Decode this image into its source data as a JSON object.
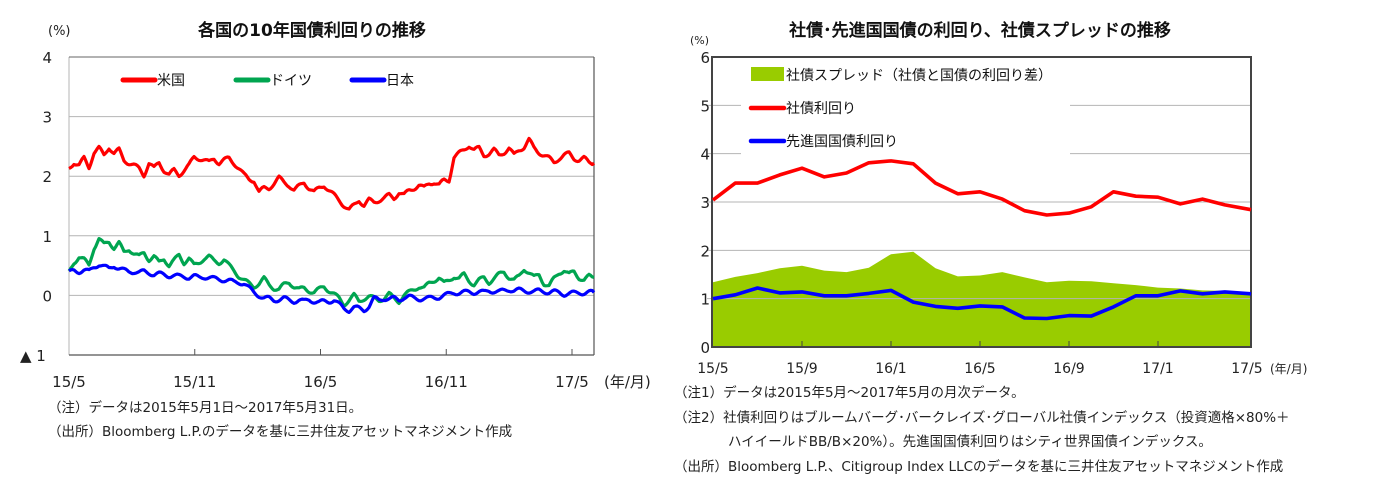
{
  "chart_data": [
    {
      "type": "line",
      "title": "各国の10年国債利回りの推移",
      "ylabel": "(%)",
      "xlabel": "(年/月)",
      "ylim": [
        -1,
        4
      ],
      "yticks": [
        {
          "value": 4,
          "label": "4"
        },
        {
          "value": 3,
          "label": "3"
        },
        {
          "value": 2,
          "label": "2"
        },
        {
          "value": 1,
          "label": "1"
        },
        {
          "value": 0,
          "label": "0"
        },
        {
          "value": -1,
          "label": "▲ 1"
        }
      ],
      "x_range": [
        "2015-05-01",
        "2017-05-31"
      ],
      "xticks": [
        {
          "month_index": 0,
          "label": "15/5"
        },
        {
          "month_index": 6,
          "label": "15/11"
        },
        {
          "month_index": 12,
          "label": "16/5"
        },
        {
          "month_index": 18,
          "label": "16/11"
        },
        {
          "month_index": 24,
          "label": "17/5"
        }
      ],
      "x_total_months": 25,
      "grid": true,
      "legend_position": "top-left",
      "sampling": "approximately weekly, evenly spaced from 2015-05-01 to 2017-05-31",
      "series": [
        {
          "name": "米国",
          "color": "#ff0000",
          "values": [
            2.13,
            2.23,
            2.18,
            2.3,
            2.15,
            2.4,
            2.47,
            2.35,
            2.49,
            2.38,
            2.44,
            2.27,
            2.22,
            2.18,
            2.13,
            2.02,
            2.22,
            2.13,
            2.23,
            2.1,
            2.02,
            2.1,
            2.02,
            2.1,
            2.18,
            2.32,
            2.3,
            2.27,
            2.23,
            2.3,
            2.22,
            2.27,
            2.3,
            2.22,
            2.13,
            2.02,
            1.95,
            1.93,
            1.73,
            1.8,
            1.8,
            1.88,
            1.97,
            1.9,
            1.85,
            1.76,
            1.83,
            1.9,
            1.8,
            1.73,
            1.8,
            1.85,
            1.76,
            1.68,
            1.6,
            1.51,
            1.43,
            1.51,
            1.6,
            1.51,
            1.6,
            1.56,
            1.6,
            1.63,
            1.68,
            1.63,
            1.73,
            1.68,
            1.76,
            1.8,
            1.85,
            1.8,
            1.88,
            1.9,
            1.85,
            1.93,
            1.93,
            2.32,
            2.38,
            2.44,
            2.52,
            2.44,
            2.47,
            2.35,
            2.38,
            2.44,
            2.35,
            2.4,
            2.47,
            2.35,
            2.44,
            2.49,
            2.61,
            2.47,
            2.4,
            2.35,
            2.3,
            2.23,
            2.3,
            2.35,
            2.38,
            2.3,
            2.27,
            2.3,
            2.23,
            2.22
          ]
        },
        {
          "name": "ドイツ",
          "color": "#00a550",
          "values": [
            0.38,
            0.55,
            0.65,
            0.6,
            0.5,
            0.8,
            0.95,
            0.85,
            0.9,
            0.8,
            0.88,
            0.72,
            0.78,
            0.7,
            0.65,
            0.72,
            0.6,
            0.65,
            0.55,
            0.62,
            0.5,
            0.58,
            0.68,
            0.55,
            0.62,
            0.5,
            0.55,
            0.62,
            0.65,
            0.58,
            0.55,
            0.6,
            0.5,
            0.42,
            0.32,
            0.25,
            0.2,
            0.15,
            0.2,
            0.28,
            0.18,
            0.12,
            0.1,
            0.18,
            0.22,
            0.15,
            0.1,
            0.12,
            0.08,
            0.05,
            0.1,
            0.15,
            0.08,
            0.02,
            -0.05,
            -0.15,
            -0.08,
            0.0,
            -0.1,
            -0.05,
            -0.02,
            -0.05,
            -0.08,
            -0.05,
            0.02,
            -0.05,
            -0.1,
            0.0,
            0.05,
            0.1,
            0.15,
            0.12,
            0.2,
            0.25,
            0.3,
            0.2,
            0.25,
            0.32,
            0.28,
            0.35,
            0.25,
            0.18,
            0.25,
            0.3,
            0.22,
            0.28,
            0.35,
            0.4,
            0.3,
            0.25,
            0.32,
            0.45,
            0.38,
            0.3,
            0.35,
            0.2,
            0.15,
            0.28,
            0.38,
            0.42,
            0.35,
            0.4,
            0.3,
            0.25,
            0.32,
            0.3
          ]
        },
        {
          "name": "日本",
          "color": "#0000ff",
          "values": [
            0.38,
            0.42,
            0.4,
            0.42,
            0.4,
            0.48,
            0.52,
            0.48,
            0.45,
            0.5,
            0.45,
            0.42,
            0.4,
            0.4,
            0.38,
            0.4,
            0.38,
            0.35,
            0.36,
            0.35,
            0.33,
            0.33,
            0.32,
            0.32,
            0.3,
            0.32,
            0.3,
            0.31,
            0.3,
            0.28,
            0.27,
            0.26,
            0.25,
            0.22,
            0.22,
            0.2,
            0.12,
            0.05,
            0.0,
            -0.05,
            -0.05,
            -0.08,
            -0.07,
            -0.05,
            -0.08,
            -0.1,
            -0.08,
            -0.1,
            -0.07,
            -0.1,
            -0.12,
            -0.1,
            -0.1,
            -0.08,
            -0.15,
            -0.22,
            -0.25,
            -0.2,
            -0.22,
            -0.25,
            -0.18,
            -0.05,
            -0.08,
            -0.05,
            -0.06,
            -0.05,
            -0.08,
            -0.03,
            -0.02,
            -0.05,
            -0.06,
            -0.05,
            -0.05,
            -0.04,
            -0.03,
            0.0,
            0.02,
            0.05,
            0.04,
            0.05,
            0.06,
            0.05,
            0.06,
            0.05,
            0.08,
            0.07,
            0.06,
            0.08,
            0.1,
            0.08,
            0.09,
            0.08,
            0.07,
            0.06,
            0.08,
            0.07,
            0.05,
            0.06,
            0.05,
            0.02,
            0.03,
            0.04,
            0.05,
            0.04,
            0.05,
            0.05
          ]
        }
      ]
    },
    {
      "type": "line",
      "title": "社債･先進国国債の利回り、社債スプレッドの推移",
      "ylabel": "(%)",
      "xlabel": "(年/月)",
      "ylim": [
        0,
        6
      ],
      "yticks": [
        {
          "value": 6,
          "label": "6"
        },
        {
          "value": 5,
          "label": "5"
        },
        {
          "value": 4,
          "label": "4"
        },
        {
          "value": 3,
          "label": "3"
        },
        {
          "value": 2,
          "label": "2"
        },
        {
          "value": 1,
          "label": "1"
        },
        {
          "value": 0,
          "label": "0"
        }
      ],
      "categories": [
        "15/5",
        "15/6",
        "15/7",
        "15/8",
        "15/9",
        "15/10",
        "15/11",
        "15/12",
        "16/1",
        "16/2",
        "16/3",
        "16/4",
        "16/5",
        "16/6",
        "16/7",
        "16/8",
        "16/9",
        "16/10",
        "16/11",
        "16/12",
        "17/1",
        "17/2",
        "17/3",
        "17/4",
        "17/5"
      ],
      "xticks": [
        {
          "index": 0,
          "label": "15/5"
        },
        {
          "index": 4,
          "label": "15/9"
        },
        {
          "index": 8,
          "label": "16/1"
        },
        {
          "index": 12,
          "label": "16/5"
        },
        {
          "index": 16,
          "label": "16/9"
        },
        {
          "index": 20,
          "label": "17/1"
        },
        {
          "index": 24,
          "label": "17/5"
        }
      ],
      "grid": true,
      "legend_position": "top-left",
      "series": [
        {
          "name": "社債スプレッド（社債と国債の利回り差）",
          "type": "area",
          "color": "#99cc00",
          "values": [
            1.34,
            1.45,
            1.53,
            1.63,
            1.68,
            1.58,
            1.55,
            1.64,
            1.92,
            1.97,
            1.63,
            1.46,
            1.48,
            1.55,
            1.44,
            1.34,
            1.37,
            1.36,
            1.32,
            1.28,
            1.23,
            1.21,
            1.17,
            1.16,
            1.1
          ]
        },
        {
          "name": "社債利回り",
          "type": "line",
          "color": "#ff0000",
          "values": [
            3.04,
            3.39,
            3.39,
            3.56,
            3.7,
            3.52,
            3.6,
            3.81,
            3.85,
            3.79,
            3.39,
            3.17,
            3.21,
            3.06,
            2.82,
            2.73,
            2.77,
            2.9,
            3.21,
            3.12,
            3.1,
            2.96,
            3.06,
            2.94,
            2.84
          ]
        },
        {
          "name": "先進国国債利回り",
          "type": "line",
          "color": "#0000ff",
          "values": [
            1.0,
            1.08,
            1.22,
            1.12,
            1.14,
            1.06,
            1.06,
            1.11,
            1.17,
            0.93,
            0.84,
            0.8,
            0.85,
            0.83,
            0.6,
            0.59,
            0.65,
            0.64,
            0.83,
            1.06,
            1.06,
            1.16,
            1.1,
            1.14,
            1.1
          ]
        }
      ]
    }
  ],
  "notes": {
    "left": [
      "（注）データは2015年5月1日～2017年5月31日。",
      "（出所）Bloomberg L.P.のデータを基に三井住友アセットマネジメント作成"
    ],
    "right": [
      "（注1）データは2015年5月～2017年5月の月次データ。",
      "（注2）社債利回りはブルームバーグ･バークレイズ･グローバル社債インデックス（投資適格×80%＋",
      "ハイイールドBB/B×20%）。先進国国債利回りはシティ世界国債インデックス。",
      "（出所）Bloomberg L.P.、Citigroup Index LLCのデータを基に三井住友アセットマネジメント作成"
    ]
  }
}
